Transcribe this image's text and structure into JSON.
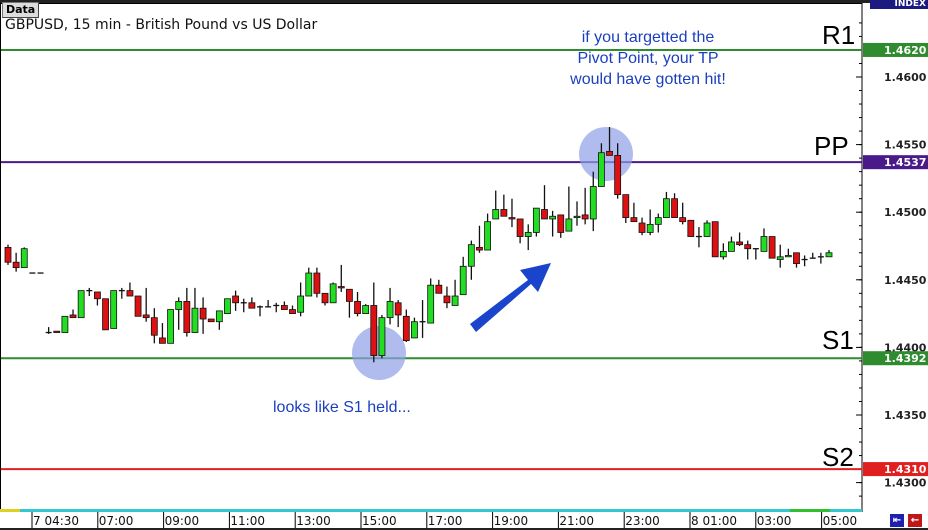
{
  "header": {
    "data_button": "Data",
    "title": "GBPUSD, 15 min - British Pound vs US Dollar",
    "index_label": "INDEX"
  },
  "chart_data": {
    "type": "candlestick",
    "title": "GBPUSD, 15 min - British Pound vs US Dollar",
    "ylim": [
      1.4265,
      1.466
    ],
    "yticks": [
      "1.4600",
      "1.4550",
      "1.4500",
      "1.4450",
      "1.4400",
      "1.4350",
      "1.4300"
    ],
    "xticks": [
      "7 04:30",
      "07:00",
      "09:00",
      "11:00",
      "13:00",
      "15:00",
      "17:00",
      "19:00",
      "21:00",
      "23:00",
      "8 01:00",
      "03:00",
      "05:00"
    ],
    "levels": [
      {
        "name": "R1",
        "price": 1.462,
        "label": "1.4620",
        "color": "#2e8b2e",
        "text_color": "#3d6b3d"
      },
      {
        "name": "PP",
        "price": 1.4537,
        "label": "1.4537",
        "color": "#4a1a8a",
        "text_color": "#6a1a6a"
      },
      {
        "name": "S1",
        "price": 1.4392,
        "label": "1.4392",
        "color": "#2e8b2e",
        "text_color": "#3d6b3d"
      },
      {
        "name": "S2",
        "price": 1.431,
        "label": "1.4310",
        "color": "#e02020",
        "text_color": "#e02020"
      }
    ],
    "up_color": "#22dd22",
    "down_color": "#dd1111",
    "ohlc": [
      [
        1.4474,
        1.4476,
        1.4461,
        1.4463
      ],
      [
        1.4463,
        1.447,
        1.4456,
        1.4459
      ],
      [
        1.4459,
        1.4474,
        1.4459,
        1.4473
      ],
      [
        1.4455,
        1.4455,
        1.4455,
        1.4455
      ],
      [
        1.4455,
        1.4455,
        1.4455,
        1.4455
      ],
      [
        1.4411,
        1.4415,
        1.441,
        1.4411
      ],
      [
        1.4412,
        1.4412,
        1.4411,
        1.4411
      ],
      [
        1.4411,
        1.4423,
        1.4411,
        1.4423
      ],
      [
        1.4424,
        1.4428,
        1.4422,
        1.4422
      ],
      [
        1.4422,
        1.4442,
        1.4422,
        1.4442
      ],
      [
        1.4442,
        1.4444,
        1.4438,
        1.4442
      ],
      [
        1.4441,
        1.4441,
        1.4431,
        1.4436
      ],
      [
        1.4436,
        1.4436,
        1.4413,
        1.4413
      ],
      [
        1.4414,
        1.4442,
        1.4414,
        1.4442
      ],
      [
        1.4442,
        1.4444,
        1.4436,
        1.4442
      ],
      [
        1.4442,
        1.4448,
        1.4438,
        1.4438
      ],
      [
        1.4438,
        1.4438,
        1.4423,
        1.4423
      ],
      [
        1.4424,
        1.4444,
        1.4419,
        1.4422
      ],
      [
        1.4422,
        1.4429,
        1.4403,
        1.4409
      ],
      [
        1.4407,
        1.4418,
        1.4403,
        1.4403
      ],
      [
        1.4403,
        1.4428,
        1.4403,
        1.4428
      ],
      [
        1.4428,
        1.4437,
        1.4413,
        1.4434
      ],
      [
        1.4434,
        1.4444,
        1.4408,
        1.4411
      ],
      [
        1.4411,
        1.4444,
        1.4411,
        1.4429
      ],
      [
        1.4429,
        1.4437,
        1.441,
        1.4421
      ],
      [
        1.4421,
        1.4421,
        1.4419,
        1.4419
      ],
      [
        1.4419,
        1.4427,
        1.4413,
        1.4427
      ],
      [
        1.4425,
        1.4436,
        1.4425,
        1.4436
      ],
      [
        1.4438,
        1.4442,
        1.4427,
        1.4433
      ],
      [
        1.4433,
        1.4436,
        1.4426,
        1.4433
      ],
      [
        1.4433,
        1.4437,
        1.4429,
        1.4429
      ],
      [
        1.443,
        1.4431,
        1.4423,
        1.443
      ],
      [
        1.443,
        1.4435,
        1.443,
        1.443
      ],
      [
        1.4431,
        1.4433,
        1.4426,
        1.4431
      ],
      [
        1.4431,
        1.4434,
        1.4428,
        1.4428
      ],
      [
        1.4428,
        1.4431,
        1.4425,
        1.4425
      ],
      [
        1.4426,
        1.4448,
        1.4423,
        1.4438
      ],
      [
        1.4438,
        1.4459,
        1.4438,
        1.4455
      ],
      [
        1.4455,
        1.4459,
        1.4437,
        1.444
      ],
      [
        1.444,
        1.444,
        1.4431,
        1.4433
      ],
      [
        1.4433,
        1.4448,
        1.4433,
        1.4447
      ],
      [
        1.4445,
        1.4461,
        1.4441,
        1.4444
      ],
      [
        1.4443,
        1.4443,
        1.4422,
        1.4434
      ],
      [
        1.4434,
        1.4441,
        1.4423,
        1.4425
      ],
      [
        1.4425,
        1.4432,
        1.4425,
        1.4431
      ],
      [
        1.4431,
        1.4448,
        1.4389,
        1.4394
      ],
      [
        1.4394,
        1.4424,
        1.4392,
        1.4422
      ],
      [
        1.4422,
        1.4444,
        1.4417,
        1.4434
      ],
      [
        1.4433,
        1.4435,
        1.4415,
        1.4424
      ],
      [
        1.4423,
        1.4428,
        1.4404,
        1.4405
      ],
      [
        1.4407,
        1.4422,
        1.4407,
        1.4419
      ],
      [
        1.4419,
        1.4435,
        1.4407,
        1.4419
      ],
      [
        1.4418,
        1.4451,
        1.4418,
        1.4446
      ],
      [
        1.4446,
        1.445,
        1.444,
        1.444
      ],
      [
        1.4438,
        1.4445,
        1.4429,
        1.4433
      ],
      [
        1.4431,
        1.445,
        1.4431,
        1.4438
      ],
      [
        1.4439,
        1.4467,
        1.4439,
        1.446
      ],
      [
        1.446,
        1.4479,
        1.445,
        1.4476
      ],
      [
        1.4474,
        1.449,
        1.447,
        1.4472
      ],
      [
        1.4472,
        1.4499,
        1.4472,
        1.4493
      ],
      [
        1.4495,
        1.4516,
        1.4495,
        1.4502
      ],
      [
        1.4502,
        1.4513,
        1.4497,
        1.4497
      ],
      [
        1.4496,
        1.451,
        1.4489,
        1.4495
      ],
      [
        1.4495,
        1.4495,
        1.4477,
        1.4482
      ],
      [
        1.4482,
        1.4491,
        1.4472,
        1.4485
      ],
      [
        1.4485,
        1.4503,
        1.4482,
        1.4503
      ],
      [
        1.4502,
        1.452,
        1.4495,
        1.4495
      ],
      [
        1.4495,
        1.4501,
        1.4482,
        1.4497
      ],
      [
        1.4498,
        1.4498,
        1.4481,
        1.4485
      ],
      [
        1.4486,
        1.4519,
        1.4486,
        1.4495
      ],
      [
        1.4496,
        1.4508,
        1.449,
        1.4497
      ],
      [
        1.4498,
        1.4518,
        1.4491,
        1.4495
      ],
      [
        1.4495,
        1.453,
        1.4486,
        1.4519
      ],
      [
        1.4519,
        1.4551,
        1.4519,
        1.4544
      ],
      [
        1.4545,
        1.4563,
        1.4542,
        1.4542
      ],
      [
        1.4542,
        1.4551,
        1.451,
        1.4513
      ],
      [
        1.4513,
        1.4513,
        1.4492,
        1.4496
      ],
      [
        1.4496,
        1.4507,
        1.4493,
        1.4493
      ],
      [
        1.4492,
        1.4496,
        1.4483,
        1.4485
      ],
      [
        1.4485,
        1.4502,
        1.4483,
        1.4491
      ],
      [
        1.4491,
        1.4499,
        1.4485,
        1.4496
      ],
      [
        1.4496,
        1.4515,
        1.4496,
        1.451
      ],
      [
        1.451,
        1.4514,
        1.4496,
        1.4496
      ],
      [
        1.4496,
        1.4507,
        1.4491,
        1.4493
      ],
      [
        1.4494,
        1.4494,
        1.4482,
        1.4482
      ],
      [
        1.4482,
        1.4489,
        1.4474,
        1.4482
      ],
      [
        1.4482,
        1.4494,
        1.4482,
        1.4492
      ],
      [
        1.4493,
        1.4493,
        1.4467,
        1.4467
      ],
      [
        1.4467,
        1.4477,
        1.4465,
        1.4471
      ],
      [
        1.4471,
        1.4482,
        1.4471,
        1.4478
      ],
      [
        1.4478,
        1.4485,
        1.4475,
        1.4476
      ],
      [
        1.4476,
        1.4479,
        1.4465,
        1.4473
      ],
      [
        1.4473,
        1.4473,
        1.4465,
        1.4473
      ],
      [
        1.4471,
        1.4488,
        1.4471,
        1.4482
      ],
      [
        1.4482,
        1.4482,
        1.4466,
        1.4466
      ],
      [
        1.4465,
        1.4476,
        1.4459,
        1.4467
      ],
      [
        1.4467,
        1.4473,
        1.4467,
        1.4468
      ],
      [
        1.447,
        1.447,
        1.4459,
        1.4462
      ],
      [
        1.4465,
        1.4468,
        1.446,
        1.4465
      ],
      [
        1.4466,
        1.447,
        1.4466,
        1.4466
      ],
      [
        1.4467,
        1.447,
        1.4462,
        1.4467
      ],
      [
        1.4467,
        1.4472,
        1.4467,
        1.447
      ]
    ],
    "annotations": {
      "pp_note": [
        "if you targetted the",
        "Pivot Point, your TP",
        "would have gotten hit!"
      ],
      "s1_note": "looks like S1 held...",
      "text_color": "#1c3fc0",
      "highlight_color": "#8fa0e6",
      "arrow": "up-right",
      "arrow_color": "#1a44cc"
    }
  },
  "nav": {
    "scroll_start_icon": "first-page-icon",
    "scroll_back_icon": "back-icon"
  }
}
